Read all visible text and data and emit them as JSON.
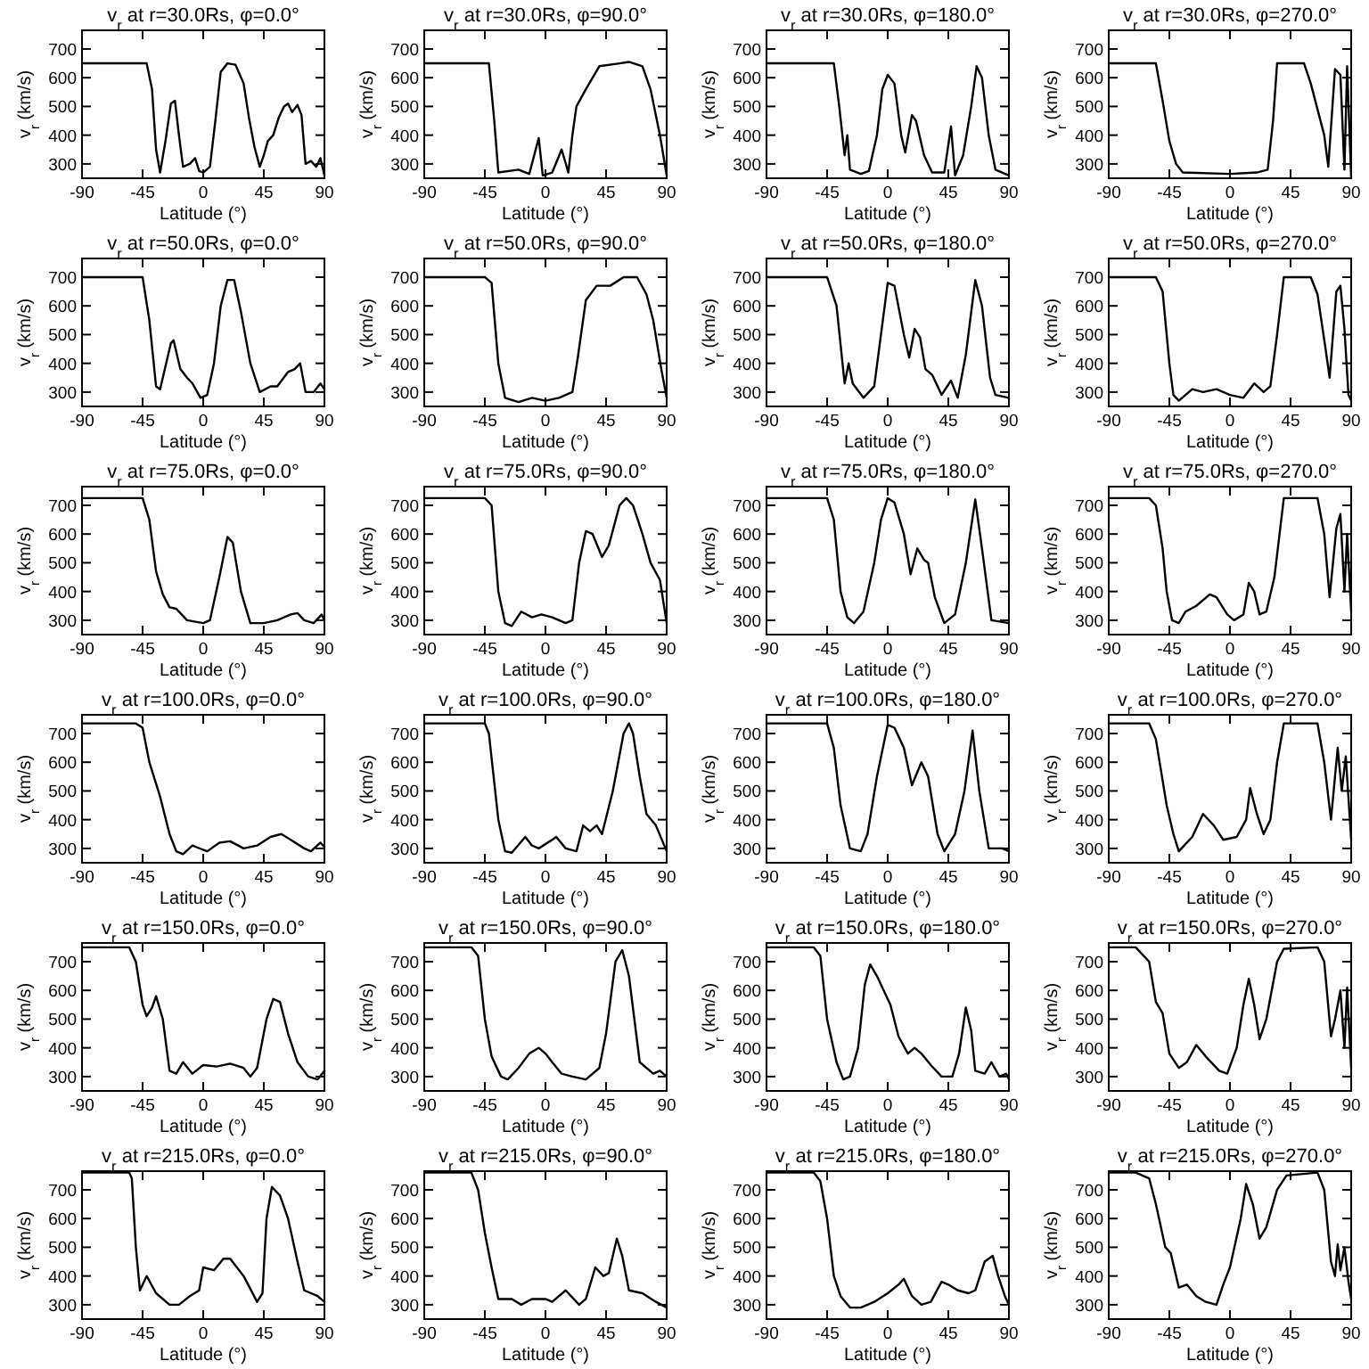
{
  "chart_data": [
    {
      "type": "line",
      "title": "v$_{r}$ at r=30.0Rs, φ=0.0°",
      "xlabel": "Latitude (°)",
      "ylabel": "v$_{r}$ (km/s)",
      "xlim": [
        -90,
        90
      ],
      "xticks": [
        -90,
        -45,
        0,
        45,
        90
      ],
      "ylim": [
        250,
        765
      ],
      "yticks": [
        300,
        400,
        500,
        600,
        700
      ],
      "color": "#000000",
      "x": [
        -90,
        -42,
        -38,
        -35,
        -32,
        -28,
        -24,
        -21,
        -18,
        -15,
        -10,
        -6,
        -3,
        0,
        5,
        9,
        13,
        18,
        24,
        30,
        34,
        38,
        42,
        45,
        48,
        52,
        56,
        60,
        63,
        66,
        70,
        73,
        76,
        80,
        84,
        87,
        90
      ],
      "values": [
        650,
        650,
        560,
        350,
        270,
        380,
        510,
        520,
        400,
        290,
        300,
        320,
        275,
        270,
        290,
        450,
        620,
        650,
        645,
        580,
        460,
        360,
        290,
        330,
        380,
        400,
        460,
        500,
        510,
        480,
        505,
        470,
        300,
        310,
        290,
        320,
        260
      ]
    },
    {
      "type": "line",
      "title": "v$_{r}$ at r=30.0Rs, φ=90.0°",
      "xlabel": "Latitude (°)",
      "ylabel": "v$_{r}$ (km/s)",
      "xlim": [
        -90,
        90
      ],
      "xticks": [
        -90,
        -45,
        0,
        45,
        90
      ],
      "ylim": [
        250,
        765
      ],
      "yticks": [
        300,
        400,
        500,
        600,
        700
      ],
      "color": "#000000",
      "x": [
        -90,
        -42,
        -38,
        -35,
        -20,
        -12,
        -5,
        -2,
        5,
        12,
        17,
        20,
        23,
        30,
        40,
        55,
        62,
        72,
        78,
        85,
        90
      ],
      "values": [
        650,
        650,
        450,
        270,
        280,
        265,
        390,
        260,
        270,
        350,
        270,
        400,
        500,
        560,
        640,
        650,
        655,
        640,
        560,
        400,
        260
      ]
    },
    {
      "type": "line",
      "title": "v$_{r}$ at r=30.0Rs, φ=180.0°",
      "xlabel": "Latitude (°)",
      "ylabel": "v$_{r}$ (km/s)",
      "xlim": [
        -90,
        90
      ],
      "xticks": [
        -90,
        -45,
        0,
        45,
        90
      ],
      "ylim": [
        250,
        765
      ],
      "yticks": [
        300,
        400,
        500,
        600,
        700
      ],
      "color": "#000000",
      "x": [
        -90,
        -40,
        -36,
        -32,
        -30,
        -28,
        -20,
        -14,
        -8,
        -4,
        0,
        5,
        10,
        13,
        18,
        21,
        27,
        33,
        42,
        47,
        50,
        56,
        62,
        66,
        70,
        75,
        80,
        90
      ],
      "values": [
        650,
        650,
        500,
        330,
        400,
        280,
        265,
        275,
        400,
        560,
        610,
        580,
        400,
        340,
        470,
        450,
        330,
        270,
        270,
        430,
        260,
        330,
        500,
        640,
        600,
        400,
        280,
        260
      ]
    },
    {
      "type": "line",
      "title": "v$_{r}$ at r=30.0Rs, φ=270.0°",
      "xlabel": "Latitude (°)",
      "ylabel": "v$_{r}$ (km/s)",
      "xlim": [
        -90,
        90
      ],
      "xticks": [
        -90,
        -45,
        0,
        45,
        90
      ],
      "ylim": [
        250,
        765
      ],
      "yticks": [
        300,
        400,
        500,
        600,
        700
      ],
      "color": "#000000",
      "x": [
        -90,
        -55,
        -50,
        -45,
        -40,
        -35,
        0,
        20,
        28,
        32,
        35,
        55,
        60,
        70,
        73,
        78,
        82,
        85,
        87,
        90
      ],
      "values": [
        650,
        650,
        520,
        380,
        300,
        270,
        265,
        270,
        280,
        450,
        650,
        650,
        580,
        400,
        290,
        630,
        610,
        280,
        640,
        250
      ]
    },
    {
      "type": "line",
      "title": "v$_{r}$ at r=50.0Rs, φ=0.0°",
      "xlabel": "Latitude (°)",
      "ylabel": "v$_{r}$ (km/s)",
      "xlim": [
        -90,
        90
      ],
      "xticks": [
        -90,
        -45,
        0,
        45,
        90
      ],
      "ylim": [
        250,
        765
      ],
      "yticks": [
        300,
        400,
        500,
        600,
        700
      ],
      "color": "#000000",
      "x": [
        -90,
        -45,
        -40,
        -35,
        -32,
        -24,
        -22,
        -17,
        -12,
        -8,
        -2,
        3,
        8,
        13,
        18,
        23,
        28,
        35,
        42,
        50,
        55,
        63,
        68,
        72,
        76,
        82,
        87,
        90
      ],
      "values": [
        700,
        700,
        550,
        320,
        310,
        470,
        480,
        380,
        350,
        330,
        280,
        290,
        400,
        600,
        690,
        690,
        580,
        400,
        300,
        320,
        320,
        370,
        380,
        400,
        300,
        300,
        330,
        310
      ]
    },
    {
      "type": "line",
      "title": "v$_{r}$ at r=50.0Rs, φ=90.0°",
      "xlabel": "Latitude (°)",
      "ylabel": "v$_{r}$ (km/s)",
      "xlim": [
        -90,
        90
      ],
      "xticks": [
        -90,
        -45,
        0,
        45,
        90
      ],
      "ylim": [
        250,
        765
      ],
      "yticks": [
        300,
        400,
        500,
        600,
        700
      ],
      "color": "#000000",
      "x": [
        -90,
        -45,
        -40,
        -35,
        -30,
        -20,
        -10,
        0,
        10,
        20,
        24,
        30,
        38,
        48,
        58,
        68,
        75,
        80,
        86,
        90
      ],
      "values": [
        700,
        700,
        680,
        400,
        280,
        265,
        280,
        270,
        280,
        300,
        420,
        620,
        670,
        670,
        700,
        700,
        640,
        550,
        380,
        280
      ]
    },
    {
      "type": "line",
      "title": "v$_{r}$ at r=50.0Rs, φ=180.0°",
      "xlabel": "Latitude (°)",
      "ylabel": "v$_{r}$ (km/s)",
      "xlim": [
        -90,
        90
      ],
      "xticks": [
        -90,
        -45,
        0,
        45,
        90
      ],
      "ylim": [
        250,
        765
      ],
      "yticks": [
        300,
        400,
        500,
        600,
        700
      ],
      "color": "#000000",
      "x": [
        -90,
        -45,
        -38,
        -32,
        -29,
        -26,
        -18,
        -10,
        -5,
        0,
        5,
        12,
        16,
        20,
        24,
        28,
        33,
        40,
        47,
        52,
        58,
        65,
        70,
        76,
        80,
        90
      ],
      "values": [
        700,
        700,
        600,
        330,
        400,
        330,
        280,
        320,
        500,
        680,
        670,
        500,
        420,
        520,
        490,
        380,
        360,
        290,
        340,
        280,
        430,
        690,
        600,
        350,
        290,
        280
      ]
    },
    {
      "type": "line",
      "title": "v$_{r}$ at r=50.0Rs, φ=270.0°",
      "xlabel": "Latitude (°)",
      "ylabel": "v$_{r}$ (km/s)",
      "xlim": [
        -90,
        90
      ],
      "xticks": [
        -90,
        -45,
        0,
        45,
        90
      ],
      "ylim": [
        250,
        765
      ],
      "yticks": [
        300,
        400,
        500,
        600,
        700
      ],
      "color": "#000000",
      "x": [
        -90,
        -55,
        -50,
        -45,
        -42,
        -38,
        -28,
        -20,
        -10,
        0,
        10,
        18,
        25,
        30,
        35,
        40,
        60,
        65,
        71,
        74,
        79,
        82,
        85,
        88,
        90
      ],
      "values": [
        700,
        700,
        650,
        400,
        290,
        270,
        310,
        300,
        310,
        290,
        280,
        330,
        300,
        320,
        500,
        700,
        700,
        640,
        450,
        350,
        650,
        670,
        520,
        290,
        270
      ]
    },
    {
      "type": "line",
      "title": "v$_{r}$ at r=75.0Rs, φ=0.0°",
      "xlabel": "Latitude (°)",
      "ylabel": "v$_{r}$ (km/s)",
      "xlim": [
        -90,
        90
      ],
      "xticks": [
        -90,
        -45,
        0,
        45,
        90
      ],
      "ylim": [
        250,
        765
      ],
      "yticks": [
        300,
        400,
        500,
        600,
        700
      ],
      "color": "#000000",
      "x": [
        -90,
        -45,
        -40,
        -35,
        -30,
        -25,
        -20,
        -12,
        0,
        5,
        12,
        18,
        22,
        28,
        35,
        45,
        55,
        65,
        70,
        75,
        82,
        88,
        90
      ],
      "values": [
        725,
        725,
        650,
        470,
        390,
        345,
        340,
        300,
        290,
        300,
        450,
        590,
        570,
        400,
        290,
        290,
        300,
        320,
        325,
        300,
        290,
        320,
        300
      ]
    },
    {
      "type": "line",
      "title": "v$_{r}$ at r=75.0Rs, φ=90.0°",
      "xlabel": "Latitude (°)",
      "ylabel": "v$_{r}$ (km/s)",
      "xlim": [
        -90,
        90
      ],
      "xticks": [
        -90,
        -45,
        0,
        45,
        90
      ],
      "ylim": [
        250,
        765
      ],
      "yticks": [
        300,
        400,
        500,
        600,
        700
      ],
      "color": "#000000",
      "x": [
        -90,
        -45,
        -40,
        -35,
        -30,
        -25,
        -18,
        -10,
        -3,
        5,
        15,
        20,
        25,
        30,
        35,
        42,
        47,
        55,
        60,
        65,
        72,
        78,
        85,
        90
      ],
      "values": [
        725,
        725,
        700,
        400,
        290,
        280,
        330,
        310,
        320,
        310,
        290,
        300,
        500,
        610,
        600,
        520,
        560,
        700,
        725,
        700,
        600,
        500,
        440,
        290
      ]
    },
    {
      "type": "line",
      "title": "v$_{r}$ at r=75.0Rs, φ=180.0°",
      "xlabel": "Latitude (°)",
      "ylabel": "v$_{r}$ (km/s)",
      "xlim": [
        -90,
        90
      ],
      "xticks": [
        -90,
        -45,
        0,
        45,
        90
      ],
      "ylim": [
        250,
        765
      ],
      "yticks": [
        300,
        400,
        500,
        600,
        700
      ],
      "color": "#000000",
      "x": [
        -90,
        -45,
        -40,
        -35,
        -30,
        -25,
        -18,
        -10,
        -5,
        0,
        5,
        12,
        17,
        22,
        27,
        30,
        35,
        42,
        50,
        58,
        65,
        70,
        77,
        90
      ],
      "values": [
        725,
        725,
        650,
        400,
        310,
        290,
        330,
        500,
        650,
        725,
        710,
        600,
        460,
        550,
        510,
        500,
        380,
        290,
        320,
        500,
        720,
        550,
        300,
        290
      ]
    },
    {
      "type": "line",
      "title": "v$_{r}$ at r=75.0Rs, φ=270.0°",
      "xlabel": "Latitude (°)",
      "ylabel": "v$_{r}$ (km/s)",
      "xlim": [
        -90,
        90
      ],
      "xticks": [
        -90,
        -45,
        0,
        45,
        90
      ],
      "ylim": [
        250,
        765
      ],
      "yticks": [
        300,
        400,
        500,
        600,
        700
      ],
      "color": "#000000",
      "x": [
        -90,
        -60,
        -55,
        -50,
        -47,
        -43,
        -38,
        -33,
        -25,
        -15,
        -10,
        -2,
        3,
        10,
        14,
        18,
        22,
        27,
        33,
        40,
        65,
        70,
        74,
        79,
        82,
        85,
        87,
        90
      ],
      "values": [
        725,
        725,
        700,
        550,
        400,
        300,
        290,
        330,
        350,
        390,
        380,
        320,
        300,
        320,
        430,
        400,
        320,
        330,
        450,
        725,
        725,
        600,
        380,
        620,
        670,
        400,
        600,
        330
      ]
    },
    {
      "type": "line",
      "title": "v$_{r}$ at r=100.0Rs, φ=0.0°",
      "xlabel": "Latitude (°)",
      "ylabel": "v$_{r}$ (km/s)",
      "xlim": [
        -90,
        90
      ],
      "xticks": [
        -90,
        -45,
        0,
        45,
        90
      ],
      "ylim": [
        250,
        765
      ],
      "yticks": [
        300,
        400,
        500,
        600,
        700
      ],
      "color": "#000000",
      "x": [
        -90,
        -50,
        -45,
        -40,
        -32,
        -25,
        -20,
        -15,
        -8,
        0,
        3,
        12,
        20,
        30,
        40,
        50,
        58,
        65,
        75,
        80,
        87,
        90
      ],
      "values": [
        735,
        735,
        720,
        600,
        480,
        350,
        290,
        280,
        310,
        295,
        290,
        320,
        325,
        300,
        310,
        340,
        350,
        330,
        300,
        290,
        320,
        305
      ]
    },
    {
      "type": "line",
      "title": "v$_{r}$ at r=100.0Rs, φ=90.0°",
      "xlabel": "Latitude (°)",
      "ylabel": "v$_{r}$ (km/s)",
      "xlim": [
        -90,
        90
      ],
      "xticks": [
        -90,
        -45,
        0,
        45,
        90
      ],
      "ylim": [
        250,
        765
      ],
      "yticks": [
        300,
        400,
        500,
        600,
        700
      ],
      "color": "#000000",
      "x": [
        -90,
        -45,
        -42,
        -35,
        -30,
        -25,
        -15,
        -10,
        -5,
        5,
        8,
        15,
        23,
        28,
        33,
        38,
        42,
        50,
        58,
        62,
        65,
        70,
        75,
        82,
        90
      ],
      "values": [
        735,
        735,
        700,
        400,
        290,
        285,
        340,
        310,
        300,
        330,
        340,
        300,
        290,
        380,
        360,
        380,
        350,
        500,
        700,
        735,
        700,
        550,
        420,
        380,
        290
      ]
    },
    {
      "type": "line",
      "title": "v$_{r}$ at r=100.0Rs, φ=180.0°",
      "xlabel": "Latitude (°)",
      "ylabel": "v$_{r}$ (km/s)",
      "xlim": [
        -90,
        90
      ],
      "xticks": [
        -90,
        -45,
        0,
        45,
        90
      ],
      "ylim": [
        250,
        765
      ],
      "yticks": [
        300,
        400,
        500,
        600,
        700
      ],
      "color": "#000000",
      "x": [
        -90,
        -45,
        -40,
        -35,
        -28,
        -20,
        -15,
        -8,
        0,
        5,
        12,
        18,
        25,
        30,
        37,
        42,
        50,
        57,
        63,
        68,
        75,
        85,
        90
      ],
      "values": [
        735,
        735,
        650,
        450,
        300,
        290,
        350,
        550,
        730,
        720,
        650,
        520,
        600,
        550,
        350,
        290,
        350,
        500,
        710,
        500,
        300,
        300,
        290
      ]
    },
    {
      "type": "line",
      "title": "v$_{r}$ at r=100.0Rs, φ=270.0°",
      "xlabel": "Latitude (°)",
      "ylabel": "v$_{r}$ (km/s)",
      "xlim": [
        -90,
        90
      ],
      "xticks": [
        -90,
        -45,
        0,
        45,
        90
      ],
      "ylim": [
        250,
        765
      ],
      "yticks": [
        300,
        400,
        500,
        600,
        700
      ],
      "color": "#000000",
      "x": [
        -90,
        -60,
        -55,
        -47,
        -42,
        -38,
        -28,
        -20,
        -12,
        -5,
        5,
        12,
        15,
        20,
        25,
        30,
        35,
        40,
        65,
        70,
        75,
        80,
        83,
        86,
        90
      ],
      "values": [
        735,
        735,
        680,
        450,
        350,
        290,
        340,
        420,
        380,
        330,
        340,
        400,
        510,
        420,
        350,
        400,
        600,
        735,
        735,
        600,
        400,
        650,
        500,
        620,
        330
      ]
    },
    {
      "type": "line",
      "title": "v$_{r}$ at r=150.0Rs, φ=0.0°",
      "xlabel": "Latitude (°)",
      "ylabel": "v$_{r}$ (km/s)",
      "xlim": [
        -90,
        90
      ],
      "xticks": [
        -90,
        -45,
        0,
        45,
        90
      ],
      "ylim": [
        250,
        765
      ],
      "yticks": [
        300,
        400,
        500,
        600,
        700
      ],
      "color": "#000000",
      "x": [
        -90,
        -55,
        -50,
        -45,
        -42,
        -38,
        -35,
        -30,
        -25,
        -20,
        -15,
        -8,
        0,
        10,
        20,
        30,
        35,
        40,
        47,
        52,
        57,
        63,
        70,
        78,
        85,
        90
      ],
      "values": [
        750,
        750,
        700,
        550,
        510,
        540,
        580,
        500,
        320,
        310,
        350,
        310,
        340,
        335,
        345,
        330,
        300,
        330,
        500,
        570,
        560,
        450,
        350,
        300,
        290,
        320
      ]
    },
    {
      "type": "line",
      "title": "v$_{r}$ at r=150.0Rs, φ=90.0°",
      "xlabel": "Latitude (°)",
      "ylabel": "v$_{r}$ (km/s)",
      "xlim": [
        -90,
        90
      ],
      "xticks": [
        -90,
        -45,
        0,
        45,
        90
      ],
      "ylim": [
        250,
        765
      ],
      "yticks": [
        300,
        400,
        500,
        600,
        700
      ],
      "color": "#000000",
      "x": [
        -90,
        -55,
        -50,
        -45,
        -40,
        -33,
        -28,
        -20,
        -12,
        -5,
        0,
        5,
        12,
        20,
        30,
        40,
        45,
        52,
        57,
        62,
        70,
        80,
        85,
        90
      ],
      "values": [
        750,
        750,
        720,
        500,
        370,
        300,
        290,
        330,
        380,
        400,
        380,
        350,
        310,
        300,
        290,
        330,
        450,
        700,
        740,
        650,
        350,
        310,
        320,
        300
      ]
    },
    {
      "type": "line",
      "title": "v$_{r}$ at r=150.0Rs, φ=180.0°",
      "xlabel": "Latitude (°)",
      "ylabel": "v$_{r}$ (km/s)",
      "xlim": [
        -90,
        90
      ],
      "xticks": [
        -90,
        -45,
        0,
        45,
        90
      ],
      "ylim": [
        250,
        765
      ],
      "yticks": [
        300,
        400,
        500,
        600,
        700
      ],
      "color": "#000000",
      "x": [
        -90,
        -55,
        -50,
        -45,
        -38,
        -33,
        -28,
        -22,
        -17,
        -13,
        -8,
        -3,
        2,
        8,
        15,
        20,
        25,
        32,
        40,
        48,
        53,
        58,
        62,
        65,
        72,
        77,
        83,
        88,
        90
      ],
      "values": [
        750,
        750,
        720,
        500,
        350,
        290,
        300,
        400,
        620,
        690,
        650,
        600,
        550,
        440,
        380,
        400,
        380,
        340,
        300,
        300,
        380,
        540,
        460,
        320,
        310,
        350,
        300,
        310,
        290
      ]
    },
    {
      "type": "line",
      "title": "v$_{r}$ at r=150.0Rs, φ=270.0°",
      "xlabel": "Latitude (°)",
      "ylabel": "v$_{r}$ (km/s)",
      "xlim": [
        -90,
        90
      ],
      "xticks": [
        -90,
        -45,
        0,
        45,
        90
      ],
      "ylim": [
        250,
        765
      ],
      "yticks": [
        300,
        400,
        500,
        600,
        700
      ],
      "color": "#000000",
      "x": [
        -90,
        -70,
        -60,
        -55,
        -50,
        -45,
        -38,
        -32,
        -25,
        -18,
        -8,
        -2,
        5,
        10,
        14,
        18,
        22,
        27,
        35,
        40,
        65,
        70,
        75,
        78,
        82,
        85,
        87,
        90
      ],
      "values": [
        750,
        750,
        700,
        560,
        520,
        380,
        330,
        350,
        410,
        370,
        320,
        310,
        400,
        550,
        640,
        550,
        430,
        500,
        700,
        745,
        750,
        700,
        440,
        500,
        600,
        400,
        610,
        330
      ]
    },
    {
      "type": "line",
      "title": "v$_{r}$ at r=215.0Rs, φ=0.0°",
      "xlabel": "Latitude (°)",
      "ylabel": "v$_{r}$ (km/s)",
      "xlim": [
        -90,
        90
      ],
      "xticks": [
        -90,
        -45,
        0,
        45,
        90
      ],
      "ylim": [
        250,
        765
      ],
      "yticks": [
        300,
        400,
        500,
        600,
        700
      ],
      "color": "#000000",
      "x": [
        -90,
        -55,
        -53,
        -50,
        -47,
        -42,
        -35,
        -25,
        -18,
        -10,
        -3,
        0,
        8,
        15,
        20,
        30,
        40,
        44,
        47,
        51,
        57,
        63,
        70,
        75,
        85,
        90
      ],
      "values": [
        760,
        760,
        740,
        500,
        350,
        400,
        340,
        300,
        300,
        330,
        350,
        430,
        420,
        460,
        460,
        400,
        310,
        340,
        600,
        710,
        680,
        600,
        450,
        350,
        330,
        310
      ]
    },
    {
      "type": "line",
      "title": "v$_{r}$ at r=215.0Rs, φ=90.0°",
      "xlabel": "Latitude (°)",
      "ylabel": "v$_{r}$ (km/s)",
      "xlim": [
        -90,
        90
      ],
      "xticks": [
        -90,
        -45,
        0,
        45,
        90
      ],
      "ylim": [
        250,
        765
      ],
      "yticks": [
        300,
        400,
        500,
        600,
        700
      ],
      "color": "#000000",
      "x": [
        -90,
        -55,
        -50,
        -45,
        -40,
        -35,
        -25,
        -18,
        -10,
        0,
        5,
        15,
        25,
        30,
        37,
        43,
        47,
        53,
        57,
        62,
        72,
        82,
        90
      ],
      "values": [
        760,
        760,
        700,
        550,
        430,
        320,
        320,
        300,
        320,
        320,
        310,
        350,
        300,
        320,
        430,
        400,
        410,
        530,
        470,
        350,
        340,
        310,
        290
      ]
    },
    {
      "type": "line",
      "title": "v$_{r}$ at r=215.0Rs, φ=180.0°",
      "xlabel": "Latitude (°)",
      "ylabel": "v$_{r}$ (km/s)",
      "xlim": [
        -90,
        90
      ],
      "xticks": [
        -90,
        -45,
        0,
        45,
        90
      ],
      "ylim": [
        250,
        765
      ],
      "yticks": [
        300,
        400,
        500,
        600,
        700
      ],
      "color": "#000000",
      "x": [
        -90,
        -55,
        -50,
        -45,
        -40,
        -35,
        -28,
        -20,
        -10,
        0,
        8,
        12,
        18,
        25,
        32,
        40,
        45,
        52,
        60,
        65,
        72,
        78,
        82,
        87,
        90
      ],
      "values": [
        760,
        760,
        730,
        600,
        400,
        330,
        290,
        290,
        310,
        340,
        370,
        390,
        330,
        300,
        310,
        380,
        370,
        350,
        340,
        350,
        450,
        470,
        400,
        330,
        300
      ]
    },
    {
      "type": "line",
      "title": "v$_{r}$ at r=215.0Rs, φ=270.0°",
      "xlabel": "Latitude (°)",
      "ylabel": "v$_{r}$ (km/s)",
      "xlim": [
        -90,
        90
      ],
      "xticks": [
        -90,
        -45,
        0,
        45,
        90
      ],
      "ylim": [
        250,
        765
      ],
      "yticks": [
        300,
        400,
        500,
        600,
        700
      ],
      "color": "#000000",
      "x": [
        -90,
        -70,
        -60,
        -55,
        -48,
        -44,
        -38,
        -32,
        -25,
        -18,
        -10,
        -5,
        0,
        8,
        12,
        17,
        22,
        27,
        35,
        42,
        65,
        70,
        75,
        78,
        80,
        82,
        85,
        88,
        90
      ],
      "values": [
        760,
        760,
        740,
        650,
        500,
        480,
        360,
        370,
        330,
        310,
        300,
        370,
        430,
        600,
        720,
        650,
        530,
        570,
        700,
        750,
        760,
        700,
        450,
        400,
        510,
        420,
        500,
        380,
        320
      ]
    }
  ]
}
